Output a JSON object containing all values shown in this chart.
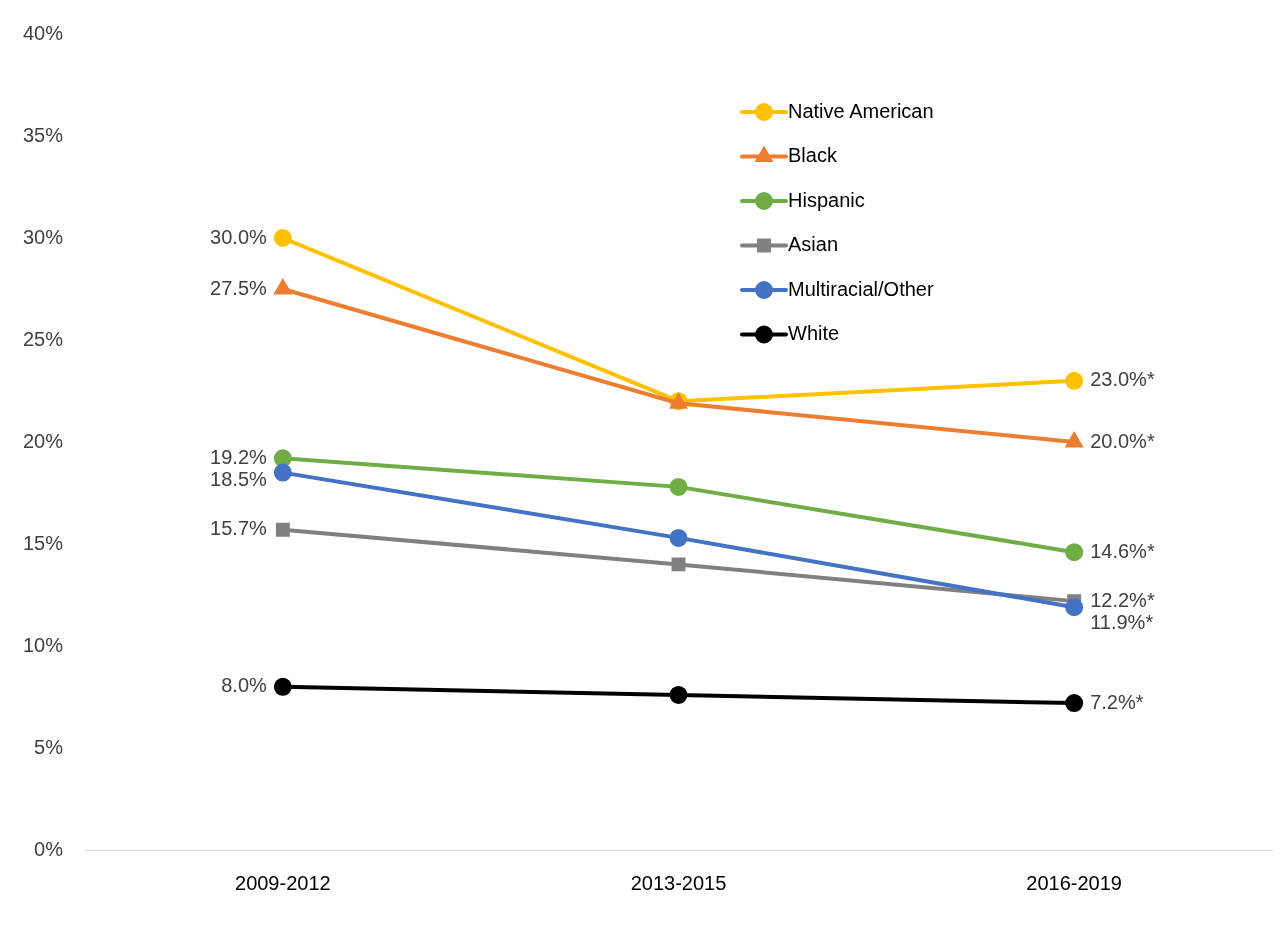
{
  "chart_data": {
    "type": "line",
    "categories": [
      "2009-2012",
      "2013-2015",
      "2016-2019"
    ],
    "series": [
      {
        "name": "Native American",
        "color": "#ffc000",
        "marker": "circle",
        "values": [
          30.0,
          22.0,
          23.0
        ],
        "value_labels": [
          "30.0%",
          null,
          "23.0%*"
        ]
      },
      {
        "name": "Black",
        "color": "#ed7d31",
        "marker": "triangle",
        "values": [
          27.5,
          21.9,
          20.0
        ],
        "value_labels": [
          "27.5%",
          null,
          "20.0%*"
        ]
      },
      {
        "name": "Hispanic",
        "color": "#70ad47",
        "marker": "circle",
        "values": [
          19.2,
          17.8,
          14.6
        ],
        "value_labels": [
          "19.2%",
          null,
          "14.6%*"
        ]
      },
      {
        "name": "Asian",
        "color": "#808080",
        "marker": "square",
        "values": [
          15.7,
          14.0,
          12.2
        ],
        "value_labels": [
          "15.7%",
          null,
          "12.2%*"
        ]
      },
      {
        "name": "Multiracial/Other",
        "color": "#4472c4",
        "marker": "circle",
        "values": [
          18.5,
          15.3,
          11.9
        ],
        "value_labels": [
          "18.5%",
          null,
          "11.9%*"
        ]
      },
      {
        "name": "White",
        "color": "#000000",
        "marker": "circle",
        "values": [
          8.0,
          7.6,
          7.2
        ],
        "value_labels": [
          "8.0%",
          null,
          "7.2%*"
        ]
      }
    ],
    "ylim": [
      0,
      40
    ],
    "yticks": [
      {
        "value": 0,
        "label": "0%"
      },
      {
        "value": 5,
        "label": "5%"
      },
      {
        "value": 10,
        "label": "10%"
      },
      {
        "value": 15,
        "label": "15%"
      },
      {
        "value": 20,
        "label": "20%"
      },
      {
        "value": 25,
        "label": "25%"
      },
      {
        "value": 30,
        "label": "30%"
      },
      {
        "value": 35,
        "label": "35%"
      },
      {
        "value": 40,
        "label": "40%"
      }
    ],
    "grid": false,
    "legend": "top right"
  }
}
